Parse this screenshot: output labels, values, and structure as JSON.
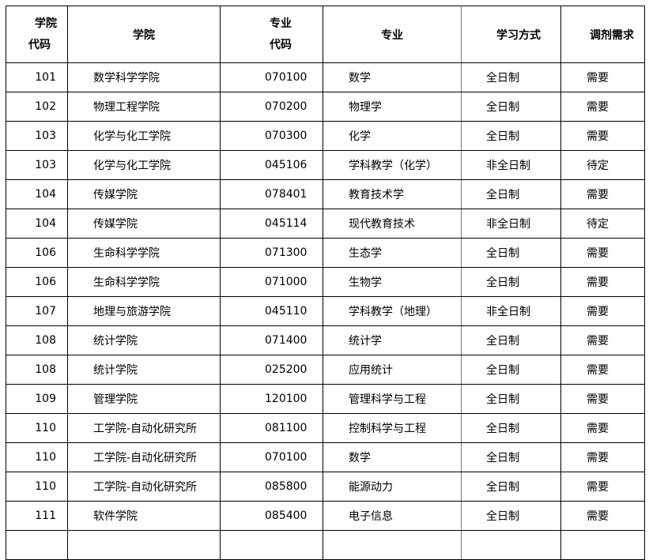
{
  "headers": {
    "college_code": [
      "学院",
      "代码"
    ],
    "college": "学院",
    "major_code": [
      "专业",
      "代码"
    ],
    "major": "专业",
    "study_mode": "学习方式",
    "adjust": "调剂需求"
  },
  "rows": [
    [
      "101",
      "数学科学学院",
      "070100",
      "数学",
      "全日制",
      "需要"
    ],
    [
      "102",
      "物理工程学院",
      "070200",
      "物理学",
      "全日制",
      "需要"
    ],
    [
      "103",
      "化学与化工学院",
      "070300",
      "化学",
      "全日制",
      "需要"
    ],
    [
      "103",
      "化学与化工学院",
      "045106",
      "学科教学（化学）",
      "非全日制",
      "待定"
    ],
    [
      "104",
      "传媒学院",
      "078401",
      "教育技术学",
      "全日制",
      "需要"
    ],
    [
      "104",
      "传媒学院",
      "045114",
      "现代教育技术",
      "非全日制",
      "待定"
    ],
    [
      "106",
      "生命科学学院",
      "071300",
      "生态学",
      "全日制",
      "需要"
    ],
    [
      "106",
      "生命科学学院",
      "071000",
      "生物学",
      "全日制",
      "需要"
    ],
    [
      "107",
      "地理与旅游学院",
      "045110",
      "学科教学（地理）",
      "非全日制",
      "需要"
    ],
    [
      "108",
      "统计学院",
      "071400",
      "统计学",
      "全日制",
      "需要"
    ],
    [
      "108",
      "统计学院",
      "025200",
      "应用统计",
      "全日制",
      "需要"
    ],
    [
      "109",
      "管理学院",
      "120100",
      "管理科学与工程",
      "全日制",
      "需要"
    ],
    [
      "110",
      "工学院-自动化研究所",
      "081100",
      "控制科学与工程",
      "全日制",
      "需要"
    ],
    [
      "110",
      "工学院-自动化研究所",
      "070100",
      "数学",
      "全日制",
      "需要"
    ],
    [
      "110",
      "工学院-自动化研究所",
      "085800",
      "能源动力",
      "全日制",
      "需要"
    ],
    [
      "111",
      "软件学院",
      "085400",
      "电子信息",
      "全日制",
      "需要"
    ]
  ]
}
